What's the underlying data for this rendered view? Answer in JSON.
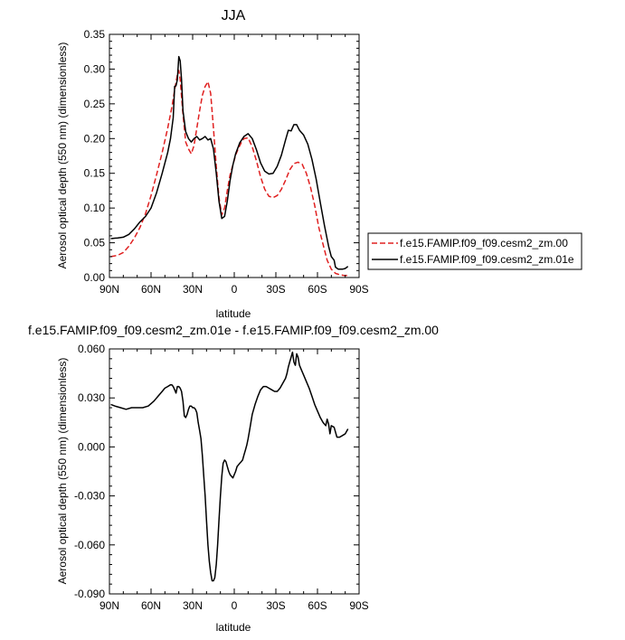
{
  "chart_data": [
    {
      "type": "line",
      "title": "JJA",
      "xlabel": "latitude",
      "ylabel": "Aerosol optical depth (550 nm) (dimensionless)",
      "xlim": [
        -90,
        90
      ],
      "ylim": [
        0.0,
        0.35
      ],
      "x_tick_values": [
        -90,
        -60,
        -30,
        0,
        30,
        60,
        90
      ],
      "x_tick_labels": [
        "90N",
        "60N",
        "30N",
        "0",
        "30S",
        "60S",
        "90S"
      ],
      "y_tick_values": [
        0.0,
        0.05,
        0.1,
        0.15,
        0.2,
        0.25,
        0.3,
        0.35
      ],
      "y_tick_labels": [
        "0.00",
        "0.05",
        "0.10",
        "0.15",
        "0.20",
        "0.25",
        "0.30",
        "0.35"
      ],
      "legend_position": "right",
      "series": [
        {
          "name": "f.e15.FAMIP.f09_f09.cesm2_zm.00",
          "color": "#e02020",
          "dash": "dashed",
          "x": [
            -89,
            -84,
            -80,
            -76,
            -72,
            -68,
            -64,
            -60,
            -56,
            -52,
            -48,
            -45,
            -43,
            -41,
            -40,
            -39,
            -37,
            -35,
            -33,
            -31,
            -29,
            -27,
            -25,
            -23,
            -21,
            -19,
            -17,
            -15,
            -13,
            -11,
            -9,
            -7,
            -5,
            -3,
            -1,
            1,
            3,
            5,
            7,
            10,
            13,
            16,
            19,
            22,
            25,
            28,
            31,
            34,
            37,
            40,
            43,
            46,
            49,
            52,
            55,
            58,
            61,
            64,
            67,
            70,
            73,
            76,
            79,
            82
          ],
          "y": [
            0.03,
            0.032,
            0.036,
            0.045,
            0.057,
            0.072,
            0.092,
            0.118,
            0.148,
            0.18,
            0.215,
            0.245,
            0.27,
            0.292,
            0.298,
            0.285,
            0.235,
            0.195,
            0.185,
            0.178,
            0.19,
            0.215,
            0.24,
            0.262,
            0.275,
            0.282,
            0.265,
            0.215,
            0.16,
            0.115,
            0.09,
            0.1,
            0.125,
            0.148,
            0.162,
            0.176,
            0.186,
            0.194,
            0.2,
            0.201,
            0.188,
            0.168,
            0.145,
            0.127,
            0.117,
            0.115,
            0.118,
            0.127,
            0.14,
            0.155,
            0.164,
            0.166,
            0.163,
            0.15,
            0.13,
            0.104,
            0.072,
            0.048,
            0.025,
            0.012,
            0.006,
            0.004,
            0.003,
            0.003
          ]
        },
        {
          "name": "f.e15.FAMIP.f09_f09.cesm2_zm.01e",
          "color": "#000000",
          "dash": "solid",
          "x": [
            -89,
            -84,
            -80,
            -76,
            -72,
            -68,
            -64,
            -60,
            -56,
            -52,
            -48,
            -46,
            -44,
            -43,
            -42,
            -41,
            -40,
            -39,
            -38,
            -37,
            -35,
            -33,
            -31,
            -29,
            -27,
            -25,
            -23,
            -21,
            -19,
            -17,
            -15,
            -13,
            -11,
            -9,
            -7,
            -5,
            -3,
            -1,
            1,
            4,
            7,
            10,
            13,
            16,
            19,
            22,
            25,
            28,
            31,
            34,
            37,
            39,
            41,
            43,
            45,
            47,
            50,
            53,
            56,
            59,
            62,
            65,
            68,
            70,
            72,
            73,
            75,
            78,
            80,
            82
          ],
          "y": [
            0.056,
            0.057,
            0.058,
            0.062,
            0.07,
            0.08,
            0.088,
            0.1,
            0.122,
            0.15,
            0.18,
            0.2,
            0.23,
            0.275,
            0.276,
            0.285,
            0.318,
            0.312,
            0.285,
            0.24,
            0.21,
            0.2,
            0.195,
            0.2,
            0.203,
            0.198,
            0.2,
            0.203,
            0.198,
            0.2,
            0.185,
            0.15,
            0.11,
            0.085,
            0.088,
            0.11,
            0.14,
            0.162,
            0.178,
            0.194,
            0.203,
            0.207,
            0.2,
            0.184,
            0.165,
            0.153,
            0.149,
            0.15,
            0.16,
            0.176,
            0.198,
            0.212,
            0.211,
            0.22,
            0.22,
            0.212,
            0.205,
            0.192,
            0.17,
            0.142,
            0.108,
            0.075,
            0.045,
            0.03,
            0.025,
            0.015,
            0.012,
            0.012,
            0.013,
            0.016
          ]
        }
      ]
    },
    {
      "type": "line",
      "title": "f.e15.FAMIP.f09_f09.cesm2_zm.01e - f.e15.FAMIP.f09_f09.cesm2_zm.00",
      "xlabel": "latitude",
      "ylabel": "Aerosol optical depth (550 nm) (dimensionless)",
      "xlim": [
        -90,
        90
      ],
      "ylim": [
        -0.09,
        0.06
      ],
      "x_tick_values": [
        -90,
        -60,
        -30,
        0,
        30,
        60,
        90
      ],
      "x_tick_labels": [
        "90N",
        "60N",
        "30N",
        "0",
        "30S",
        "60S",
        "90S"
      ],
      "y_tick_values": [
        -0.09,
        -0.06,
        -0.03,
        0.0,
        0.03,
        0.06
      ],
      "y_tick_labels": [
        "-0.090",
        "-0.060",
        "-0.030",
        "0.000",
        "0.030",
        "0.060"
      ],
      "series": [
        {
          "color": "#000000",
          "dash": "solid",
          "x": [
            -89,
            -86,
            -82,
            -78,
            -74,
            -70,
            -66,
            -62,
            -58,
            -55,
            -52,
            -50,
            -48,
            -46,
            -45,
            -44,
            -43,
            -42,
            -41,
            -40,
            -39,
            -38,
            -37,
            -36,
            -35,
            -34,
            -33,
            -32,
            -31,
            -30,
            -29,
            -28,
            -27,
            -26,
            -25,
            -24,
            -23,
            -22,
            -21,
            -20,
            -19,
            -18,
            -17,
            -16,
            -15,
            -14,
            -13,
            -12,
            -11,
            -10,
            -9,
            -8,
            -7,
            -6,
            -5,
            -4,
            -3,
            -2,
            -1,
            0,
            1,
            2,
            3,
            4,
            5,
            6,
            7,
            8,
            9,
            10,
            11,
            12,
            13,
            15,
            17,
            19,
            21,
            23,
            25,
            27,
            29,
            31,
            33,
            35,
            37,
            38,
            39,
            40,
            41,
            42,
            43,
            44,
            45,
            46,
            47,
            48,
            50,
            52,
            54,
            56,
            58,
            60,
            62,
            64,
            66,
            67,
            68,
            69,
            70,
            72,
            74,
            76,
            78,
            80,
            82
          ],
          "y": [
            0.026,
            0.025,
            0.024,
            0.023,
            0.024,
            0.024,
            0.024,
            0.025,
            0.028,
            0.031,
            0.034,
            0.036,
            0.037,
            0.038,
            0.038,
            0.037,
            0.035,
            0.033,
            0.037,
            0.037,
            0.036,
            0.034,
            0.028,
            0.019,
            0.018,
            0.02,
            0.023,
            0.025,
            0.025,
            0.024,
            0.024,
            0.023,
            0.021,
            0.015,
            0.01,
            0.005,
            -0.005,
            -0.018,
            -0.03,
            -0.045,
            -0.06,
            -0.07,
            -0.077,
            -0.082,
            -0.082,
            -0.08,
            -0.072,
            -0.06,
            -0.045,
            -0.03,
            -0.018,
            -0.01,
            -0.008,
            -0.009,
            -0.012,
            -0.015,
            -0.017,
            -0.018,
            -0.019,
            -0.017,
            -0.015,
            -0.012,
            -0.011,
            -0.01,
            -0.009,
            -0.008,
            -0.005,
            -0.002,
            0.001,
            0.005,
            0.01,
            0.015,
            0.02,
            0.026,
            0.031,
            0.035,
            0.037,
            0.037,
            0.036,
            0.035,
            0.034,
            0.034,
            0.036,
            0.039,
            0.042,
            0.045,
            0.049,
            0.052,
            0.055,
            0.058,
            0.052,
            0.05,
            0.057,
            0.055,
            0.05,
            0.048,
            0.044,
            0.04,
            0.036,
            0.031,
            0.026,
            0.022,
            0.018,
            0.015,
            0.013,
            0.017,
            0.014,
            0.008,
            0.013,
            0.012,
            0.006,
            0.006,
            0.007,
            0.008,
            0.011
          ]
        }
      ]
    }
  ]
}
